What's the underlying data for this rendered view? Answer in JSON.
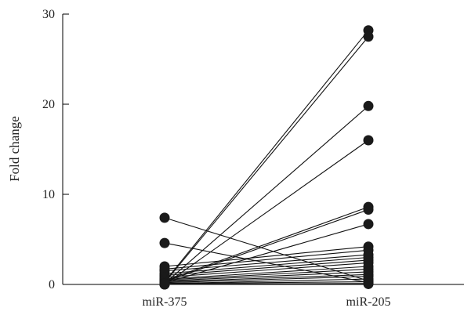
{
  "chart_data": {
    "type": "line",
    "title": "",
    "xlabel": "",
    "ylabel": "Fold change",
    "categories": [
      "miR-375",
      "miR-205"
    ],
    "ylim": [
      0,
      30
    ],
    "yticks": [
      0,
      10,
      20,
      30
    ],
    "grid": false,
    "legend": "none",
    "line_color": "#111111",
    "marker_color": "#1a1a1a",
    "pairs": [
      [
        0.3,
        28.2
      ],
      [
        0.2,
        27.5
      ],
      [
        0.1,
        19.8
      ],
      [
        0.0,
        16.0
      ],
      [
        0.4,
        8.6
      ],
      [
        0.3,
        8.3
      ],
      [
        0.2,
        6.7
      ],
      [
        7.4,
        0.4
      ],
      [
        4.6,
        0.2
      ],
      [
        2.0,
        4.2
      ],
      [
        1.7,
        3.8
      ],
      [
        1.5,
        3.3
      ],
      [
        1.2,
        3.0
      ],
      [
        1.0,
        2.7
      ],
      [
        0.8,
        2.4
      ],
      [
        0.6,
        2.0
      ],
      [
        0.5,
        1.7
      ],
      [
        0.4,
        1.4
      ],
      [
        0.3,
        1.1
      ],
      [
        0.2,
        0.9
      ],
      [
        0.1,
        0.6
      ],
      [
        0.1,
        0.3
      ],
      [
        0.05,
        0.1
      ],
      [
        0.0,
        0.05
      ]
    ]
  }
}
